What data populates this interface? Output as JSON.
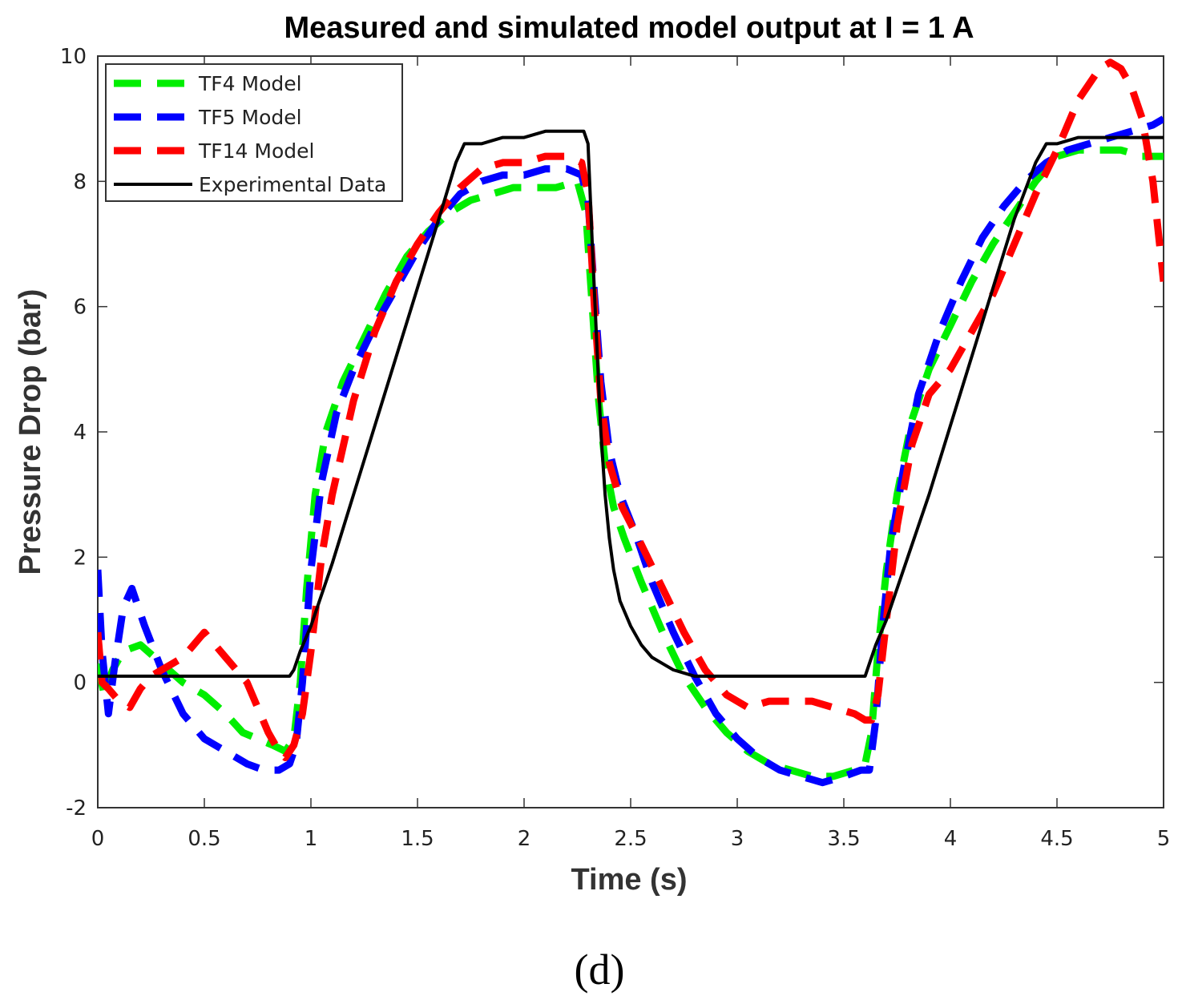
{
  "chart_data": {
    "type": "line",
    "title": "Measured and simulated model output at I = 1 A",
    "xlabel": "Time (s)",
    "ylabel": "Pressure Drop (bar)",
    "xlim": [
      0,
      5
    ],
    "ylim": [
      -2,
      10
    ],
    "xticks": [
      0,
      0.5,
      1,
      1.5,
      2,
      2.5,
      3,
      3.5,
      4,
      4.5,
      5
    ],
    "xtick_labels": [
      "0",
      "0.5",
      "1",
      "1.5",
      "2",
      "2.5",
      "3",
      "3.5",
      "4",
      "4.5",
      "5"
    ],
    "yticks": [
      -2,
      0,
      2,
      4,
      6,
      8,
      10
    ],
    "ytick_labels": [
      "-2",
      "0",
      "2",
      "4",
      "6",
      "8",
      "10"
    ],
    "grid": false,
    "legend_position": "top-left",
    "caption": "(d)",
    "series": [
      {
        "name": "TF4 Model",
        "color": "#00ee00",
        "style": "dashed",
        "x": [
          0,
          0.03,
          0.07,
          0.12,
          0.2,
          0.3,
          0.4,
          0.5,
          0.6,
          0.68,
          0.75,
          0.82,
          0.88,
          0.92,
          0.95,
          0.98,
          1.02,
          1.07,
          1.15,
          1.25,
          1.35,
          1.45,
          1.55,
          1.65,
          1.75,
          1.85,
          1.95,
          2.05,
          2.15,
          2.25,
          2.29,
          2.32,
          2.35,
          2.38,
          2.42,
          2.47,
          2.55,
          2.65,
          2.75,
          2.85,
          2.95,
          3.05,
          3.15,
          3.25,
          3.35,
          3.45,
          3.55,
          3.6,
          3.63,
          3.66,
          3.7,
          3.75,
          3.82,
          3.9,
          4.0,
          4.1,
          4.2,
          4.3,
          4.4,
          4.5,
          4.6,
          4.7,
          4.8,
          4.9,
          5.0
        ],
        "y": [
          0.3,
          -0.2,
          0.2,
          0.5,
          0.6,
          0.3,
          0.0,
          -0.2,
          -0.5,
          -0.8,
          -0.9,
          -1.0,
          -1.1,
          -0.9,
          0.0,
          1.5,
          3.0,
          4.0,
          4.8,
          5.5,
          6.2,
          6.8,
          7.2,
          7.5,
          7.7,
          7.8,
          7.9,
          7.9,
          7.9,
          8.0,
          7.5,
          6.0,
          4.5,
          3.5,
          2.8,
          2.3,
          1.6,
          0.8,
          0.1,
          -0.4,
          -0.8,
          -1.1,
          -1.3,
          -1.4,
          -1.5,
          -1.5,
          -1.4,
          -1.3,
          -0.8,
          0.5,
          1.8,
          3.0,
          4.2,
          5.0,
          5.7,
          6.4,
          7.0,
          7.5,
          8.0,
          8.4,
          8.5,
          8.5,
          8.5,
          8.4,
          8.4
        ]
      },
      {
        "name": "TF5 Model",
        "color": "#0000ff",
        "style": "dashed",
        "x": [
          0,
          0.02,
          0.05,
          0.08,
          0.12,
          0.16,
          0.22,
          0.3,
          0.4,
          0.5,
          0.6,
          0.7,
          0.78,
          0.85,
          0.9,
          0.93,
          0.96,
          1.0,
          1.05,
          1.12,
          1.2,
          1.3,
          1.4,
          1.5,
          1.6,
          1.7,
          1.8,
          1.9,
          2.0,
          2.1,
          2.2,
          2.27,
          2.3,
          2.33,
          2.36,
          2.4,
          2.45,
          2.52,
          2.6,
          2.7,
          2.8,
          2.9,
          3.0,
          3.1,
          3.2,
          3.3,
          3.4,
          3.5,
          3.58,
          3.62,
          3.65,
          3.68,
          3.72,
          3.78,
          3.85,
          3.95,
          4.05,
          4.15,
          4.25,
          4.35,
          4.45,
          4.55,
          4.65,
          4.75,
          4.85,
          4.95,
          5.0
        ],
        "y": [
          1.8,
          0.5,
          -0.5,
          0.3,
          1.2,
          1.5,
          0.9,
          0.2,
          -0.5,
          -0.9,
          -1.1,
          -1.3,
          -1.4,
          -1.4,
          -1.3,
          -1.0,
          0.0,
          1.8,
          3.2,
          4.3,
          5.0,
          5.7,
          6.3,
          6.9,
          7.4,
          7.8,
          8.0,
          8.1,
          8.1,
          8.2,
          8.2,
          8.1,
          7.7,
          6.2,
          4.8,
          3.7,
          3.0,
          2.4,
          1.6,
          0.8,
          0.1,
          -0.5,
          -0.9,
          -1.2,
          -1.4,
          -1.5,
          -1.6,
          -1.5,
          -1.4,
          -1.4,
          -0.6,
          0.8,
          2.2,
          3.4,
          4.6,
          5.6,
          6.4,
          7.1,
          7.6,
          8.0,
          8.3,
          8.5,
          8.6,
          8.7,
          8.8,
          8.9,
          9.0
        ]
      },
      {
        "name": "TF14 Model",
        "color": "#ff0000",
        "style": "dashed",
        "x": [
          0,
          0.02,
          0.05,
          0.1,
          0.15,
          0.2,
          0.25,
          0.3,
          0.35,
          0.4,
          0.45,
          0.5,
          0.55,
          0.6,
          0.65,
          0.7,
          0.75,
          0.8,
          0.85,
          0.88,
          0.92,
          0.96,
          1.0,
          1.05,
          1.1,
          1.2,
          1.3,
          1.4,
          1.5,
          1.6,
          1.7,
          1.8,
          1.9,
          2.0,
          2.1,
          2.2,
          2.27,
          2.3,
          2.33,
          2.36,
          2.4,
          2.46,
          2.55,
          2.65,
          2.75,
          2.85,
          2.95,
          3.05,
          3.15,
          3.25,
          3.35,
          3.45,
          3.55,
          3.6,
          3.63,
          3.66,
          3.7,
          3.75,
          3.82,
          3.9,
          4.0,
          4.1,
          4.2,
          4.3,
          4.4,
          4.5,
          4.6,
          4.7,
          4.75,
          4.8,
          4.85,
          4.9,
          4.95,
          5.0
        ],
        "y": [
          0.8,
          0.0,
          -0.1,
          -0.3,
          -0.4,
          -0.1,
          0.1,
          0.2,
          0.3,
          0.4,
          0.6,
          0.8,
          0.6,
          0.4,
          0.2,
          0.0,
          -0.4,
          -0.8,
          -1.1,
          -1.2,
          -1.0,
          -0.5,
          0.5,
          2.0,
          3.0,
          4.5,
          5.6,
          6.4,
          7.0,
          7.5,
          7.9,
          8.2,
          8.3,
          8.3,
          8.4,
          8.4,
          8.3,
          7.8,
          6.0,
          4.5,
          3.5,
          2.8,
          2.2,
          1.5,
          0.8,
          0.2,
          -0.2,
          -0.4,
          -0.3,
          -0.3,
          -0.3,
          -0.4,
          -0.5,
          -0.6,
          -0.6,
          -0.2,
          1.0,
          2.5,
          3.8,
          4.6,
          5.0,
          5.6,
          6.2,
          7.0,
          7.8,
          8.5,
          9.3,
          9.8,
          9.9,
          9.8,
          9.5,
          9.0,
          8.0,
          6.4
        ]
      },
      {
        "name": "Experimental Data",
        "color": "#000000",
        "style": "solid",
        "x": [
          0,
          0.1,
          0.2,
          0.3,
          0.4,
          0.5,
          0.6,
          0.7,
          0.8,
          0.9,
          0.92,
          0.95,
          1.0,
          1.1,
          1.2,
          1.3,
          1.4,
          1.5,
          1.6,
          1.68,
          1.72,
          1.8,
          1.9,
          2.0,
          2.1,
          2.2,
          2.28,
          2.3,
          2.32,
          2.34,
          2.36,
          2.38,
          2.4,
          2.42,
          2.45,
          2.5,
          2.55,
          2.6,
          2.65,
          2.7,
          2.75,
          2.8,
          2.9,
          3.0,
          3.1,
          3.2,
          3.3,
          3.4,
          3.5,
          3.6,
          3.62,
          3.65,
          3.7,
          3.8,
          3.9,
          4.0,
          4.1,
          4.2,
          4.3,
          4.4,
          4.45,
          4.5,
          4.6,
          4.7,
          4.8,
          4.9,
          5.0
        ],
        "y": [
          0.1,
          0.1,
          0.1,
          0.1,
          0.1,
          0.1,
          0.1,
          0.1,
          0.1,
          0.1,
          0.2,
          0.5,
          0.9,
          1.9,
          3.0,
          4.1,
          5.2,
          6.3,
          7.4,
          8.3,
          8.6,
          8.6,
          8.7,
          8.7,
          8.8,
          8.8,
          8.8,
          8.6,
          7.0,
          5.5,
          4.0,
          3.0,
          2.3,
          1.8,
          1.3,
          0.9,
          0.6,
          0.4,
          0.3,
          0.2,
          0.15,
          0.1,
          0.1,
          0.1,
          0.1,
          0.1,
          0.1,
          0.1,
          0.1,
          0.1,
          0.3,
          0.6,
          1.0,
          2.0,
          3.0,
          4.1,
          5.2,
          6.3,
          7.4,
          8.3,
          8.6,
          8.6,
          8.7,
          8.7,
          8.7,
          8.7,
          8.7
        ]
      }
    ]
  }
}
